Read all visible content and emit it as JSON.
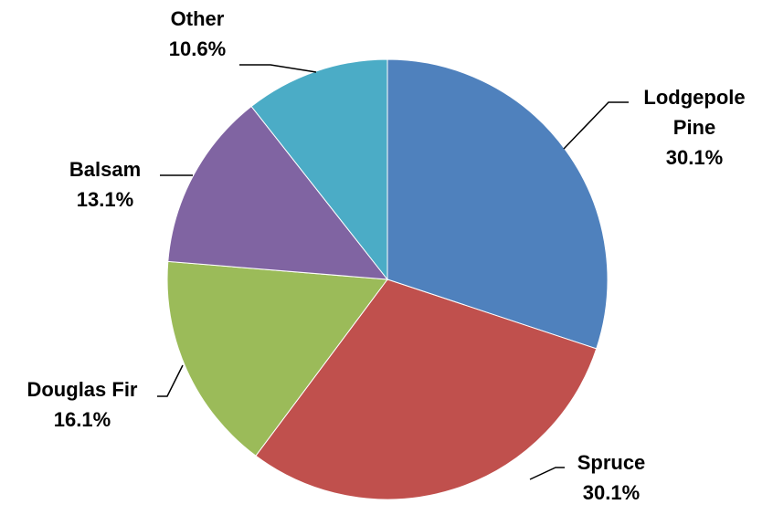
{
  "chart_data": {
    "type": "pie",
    "title": "",
    "slices": [
      {
        "label": "Lodgepole Pine",
        "label_lines": [
          "Lodgepole",
          "Pine"
        ],
        "value": 30.1,
        "value_label": "30.1%",
        "color": "#4F81BD"
      },
      {
        "label": "Spruce",
        "label_lines": [
          "Spruce"
        ],
        "value": 30.1,
        "value_label": "30.1%",
        "color": "#C0504D"
      },
      {
        "label": "Douglas Fir",
        "label_lines": [
          "Douglas Fir"
        ],
        "value": 16.1,
        "value_label": "16.1%",
        "color": "#9BBB59"
      },
      {
        "label": "Balsam",
        "label_lines": [
          "Balsam"
        ],
        "value": 13.1,
        "value_label": "13.1%",
        "color": "#8064A2"
      },
      {
        "label": "Other",
        "label_lines": [
          "Other"
        ],
        "value": 10.6,
        "value_label": "10.6%",
        "color": "#4BACC6"
      }
    ],
    "start_angle": "12 o'clock",
    "direction": "clockwise",
    "legend": "none",
    "data_labels": "outside with leader lines"
  }
}
